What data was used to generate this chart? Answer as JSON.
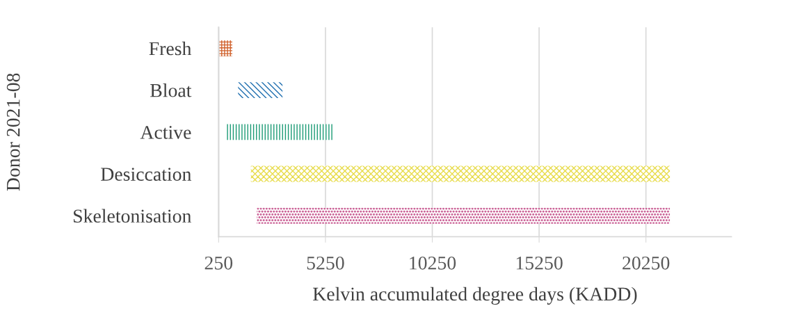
{
  "chart_data": {
    "type": "bar",
    "orientation": "horizontal",
    "ylabel": "Donor 2021-08",
    "xlabel": "Kelvin accumulated degree days (KADD)",
    "categories": [
      "Fresh",
      "Bloat",
      "Active",
      "Desiccation",
      "Skeletonisation"
    ],
    "base": [
      280,
      1160,
      580,
      1760,
      2040
    ],
    "values": [
      610,
      2080,
      5000,
      19610,
      19330
    ],
    "colors": [
      "#d0612c",
      "#1f6fb0",
      "#1a9a74",
      "#e8dc4a",
      "#cc6699"
    ],
    "xlim": [
      250,
      24250
    ],
    "xticks": [
      250,
      5250,
      10250,
      15250,
      20250
    ],
    "grid": "x"
  }
}
